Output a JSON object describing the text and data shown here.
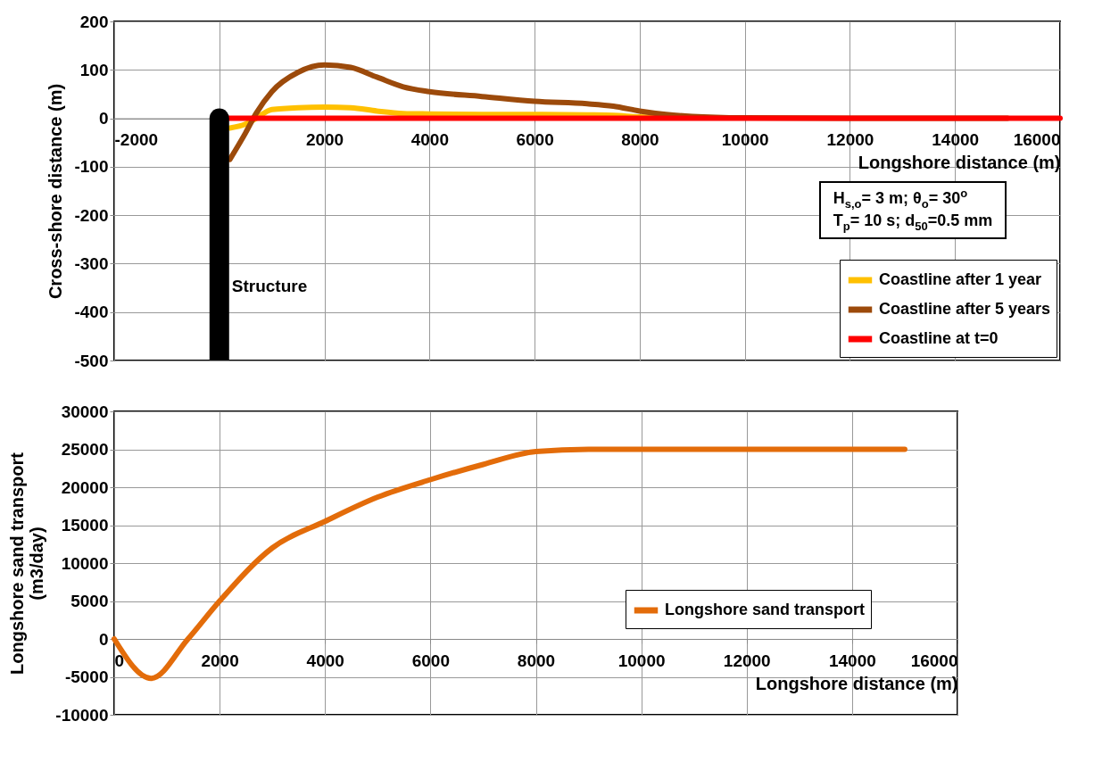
{
  "chart_data": [
    {
      "type": "line",
      "xlabel": "Longshore distance (m)",
      "ylabel": "Cross-shore distance (m)",
      "x": [
        0,
        200,
        500,
        700,
        1000,
        1500,
        2000,
        2500,
        3000,
        3500,
        4000,
        5000,
        6000,
        7000,
        7500,
        8000,
        8500,
        9000,
        10000,
        12000,
        15000,
        16000
      ],
      "series": [
        {
          "name": "Coastline after 1 year",
          "color": "#ffc000",
          "values": [
            null,
            -20,
            -12,
            0,
            18,
            22,
            23,
            22,
            15,
            10,
            9,
            8,
            8,
            7,
            6,
            3,
            2,
            null,
            null,
            null,
            null,
            null
          ]
        },
        {
          "name": "Coastline after 5 years",
          "color": "#9c4a0b",
          "values": [
            null,
            -85,
            -30,
            10,
            55,
            95,
            110,
            105,
            85,
            65,
            55,
            45,
            35,
            30,
            25,
            15,
            8,
            4,
            1,
            0,
            0,
            null
          ]
        },
        {
          "name": "Coastline at t=0",
          "color": "#ff0000",
          "values": [
            0,
            0,
            0,
            0,
            0,
            0,
            0,
            0,
            0,
            0,
            0,
            0,
            0,
            0,
            0,
            0,
            0,
            0,
            0,
            0,
            0,
            0
          ]
        },
        {
          "name": "Structure",
          "color": "#000000",
          "x": [
            0,
            0
          ],
          "values": [
            -500,
            0
          ]
        }
      ],
      "xlim": [
        -2000,
        16000
      ],
      "xticks": [
        -2000,
        {
          "value": 0,
          "label": null
        },
        2000,
        4000,
        6000,
        8000,
        10000,
        12000,
        14000,
        16000
      ],
      "ylim": [
        -500,
        200
      ],
      "yticks": [
        -500,
        -400,
        -300,
        -200,
        -100,
        0,
        100,
        200
      ],
      "grid": true,
      "legend": "bottom right",
      "annotations": [
        "H$_{s,o}$= 3 m; θ$_{o}$= 30$^{o}$",
        "T$_{p}$= 10 s; d$_{50}$=0.5 mm"
      ]
    },
    {
      "type": "line",
      "xlabel": "Longshore distance (m)",
      "ylabel": "Longshore sand transport\n(m3/day)",
      "x": [
        0,
        700,
        1400,
        2000,
        3000,
        4000,
        5000,
        6000,
        7000,
        8000,
        9000,
        15000
      ],
      "series": [
        {
          "name": "Longshore sand transport",
          "color": "#e36c0a",
          "values": [
            0,
            -5200,
            0,
            5000,
            12000,
            15500,
            18700,
            21000,
            23000,
            24700,
            25000,
            25000
          ]
        }
      ],
      "xlim": [
        0,
        16000
      ],
      "xticks": [
        0,
        2000,
        4000,
        6000,
        8000,
        10000,
        12000,
        14000,
        16000
      ],
      "ylim": [
        -10000,
        30000
      ],
      "yticks": [
        -10000,
        -5000,
        0,
        5000,
        10000,
        15000,
        20000,
        25000,
        30000
      ],
      "grid": true,
      "legend": "bottom right"
    }
  ]
}
